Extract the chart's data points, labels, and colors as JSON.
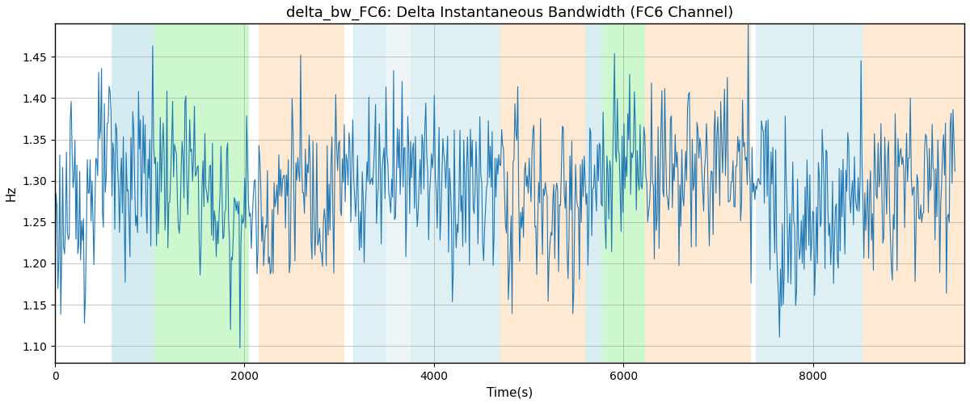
{
  "title": "delta_bw_FC6: Delta Instantaneous Bandwidth (FC6 Channel)",
  "xlabel": "Time(s)",
  "ylabel": "Hz",
  "ylim": [
    1.08,
    1.49
  ],
  "xlim": [
    0,
    9600
  ],
  "line_color": "#1f77b4",
  "line_width": 0.8,
  "background_bands": [
    {
      "xmin": 600,
      "xmax": 1050,
      "color": "#add8e6",
      "alpha": 0.5
    },
    {
      "xmin": 1050,
      "xmax": 2050,
      "color": "#90ee90",
      "alpha": 0.45
    },
    {
      "xmin": 2150,
      "xmax": 3050,
      "color": "#ffd8b0",
      "alpha": 0.55
    },
    {
      "xmin": 3150,
      "xmax": 3500,
      "color": "#add8e6",
      "alpha": 0.4
    },
    {
      "xmin": 3500,
      "xmax": 3750,
      "color": "#d0e4f0",
      "alpha": 0.35
    },
    {
      "xmin": 3750,
      "xmax": 4700,
      "color": "#add8e6",
      "alpha": 0.38
    },
    {
      "xmin": 4700,
      "xmax": 5600,
      "color": "#ffd8b0",
      "alpha": 0.55
    },
    {
      "xmin": 5600,
      "xmax": 5780,
      "color": "#add8e6",
      "alpha": 0.45
    },
    {
      "xmin": 5780,
      "xmax": 6230,
      "color": "#90ee90",
      "alpha": 0.45
    },
    {
      "xmin": 6230,
      "xmax": 7350,
      "color": "#ffd8b0",
      "alpha": 0.55
    },
    {
      "xmin": 7400,
      "xmax": 8530,
      "color": "#add8e6",
      "alpha": 0.38
    },
    {
      "xmin": 8530,
      "xmax": 9600,
      "color": "#ffd8b0",
      "alpha": 0.55
    }
  ],
  "seed": 123,
  "n_points": 950,
  "x_max": 9500,
  "signal_mean": 1.295,
  "signal_std": 0.062,
  "title_fontsize": 13,
  "label_fontsize": 11,
  "xticks": [
    0,
    2000,
    4000,
    6000,
    8000
  ]
}
